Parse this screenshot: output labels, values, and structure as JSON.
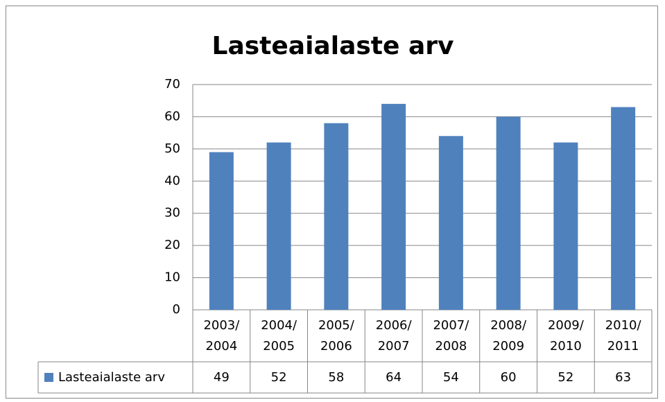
{
  "chart_data": {
    "type": "bar",
    "title": "Lasteaialaste arv",
    "categories": [
      "2003/\n2004",
      "2004/\n2005",
      "2005/\n2006",
      "2006/\n2007",
      "2007/\n2008",
      "2008/\n2009",
      "2009/\n2010",
      "2010/\n2011"
    ],
    "series": [
      {
        "name": "Lasteaialaste arv",
        "color": "#4f81bd",
        "values": [
          49,
          52,
          58,
          64,
          54,
          60,
          52,
          63
        ]
      }
    ],
    "ylim": [
      0,
      70
    ],
    "yticks": [
      0,
      10,
      20,
      30,
      40,
      50,
      60,
      70
    ],
    "grid": true,
    "data_table": true
  }
}
